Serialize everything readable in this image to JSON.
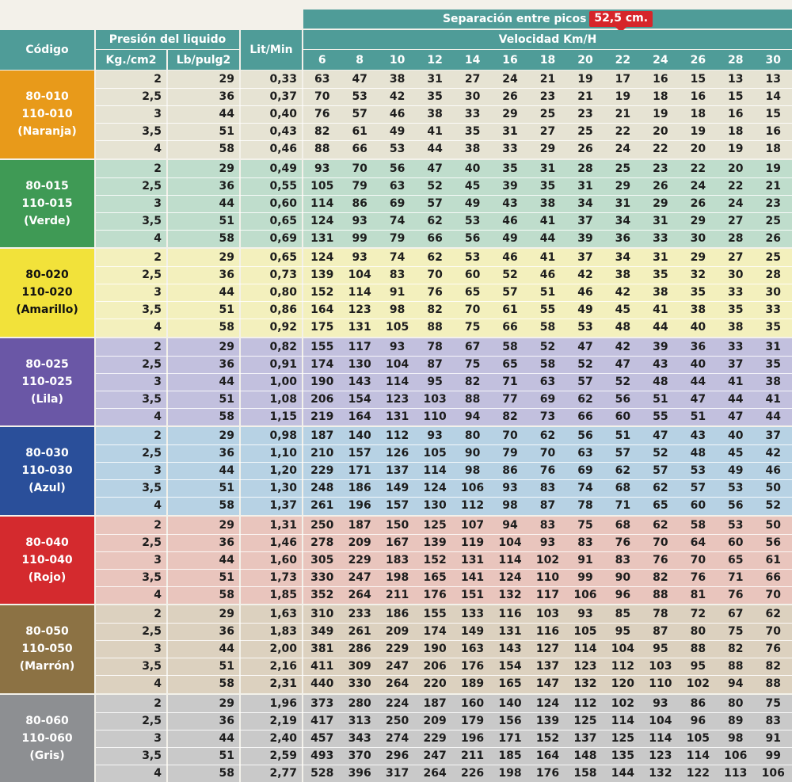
{
  "header": {
    "separation_label": "Separación entre picos",
    "separation_value": "52,5 cm.",
    "codigo": "Código",
    "presion": "Presión del liquido",
    "kg": "Kg./cm2",
    "lb": "Lb/pulg2",
    "lit": "Lit/Min",
    "velocidad": "Velocidad  Km/H",
    "speeds": [
      "6",
      "8",
      "10",
      "12",
      "14",
      "16",
      "18",
      "20",
      "22",
      "24",
      "26",
      "28",
      "30"
    ]
  },
  "groups": [
    {
      "code1": "80-010",
      "code2": "110-010",
      "color_name": "(Naranja)",
      "label_bg": "#e89a1a",
      "label_color": "#ffffff",
      "row_bg": "#e6e3d3",
      "rows": [
        {
          "kg": "2",
          "lb": "29",
          "lit": "0,33",
          "v": [
            "63",
            "47",
            "38",
            "31",
            "27",
            "24",
            "21",
            "19",
            "17",
            "16",
            "15",
            "13",
            "13"
          ]
        },
        {
          "kg": "2,5",
          "lb": "36",
          "lit": "0,37",
          "v": [
            "70",
            "53",
            "42",
            "35",
            "30",
            "26",
            "23",
            "21",
            "19",
            "18",
            "16",
            "15",
            "14"
          ]
        },
        {
          "kg": "3",
          "lb": "44",
          "lit": "0,40",
          "v": [
            "76",
            "57",
            "46",
            "38",
            "33",
            "29",
            "25",
            "23",
            "21",
            "19",
            "18",
            "16",
            "15"
          ]
        },
        {
          "kg": "3,5",
          "lb": "51",
          "lit": "0,43",
          "v": [
            "82",
            "61",
            "49",
            "41",
            "35",
            "31",
            "27",
            "25",
            "22",
            "20",
            "19",
            "18",
            "16"
          ]
        },
        {
          "kg": "4",
          "lb": "58",
          "lit": "0,46",
          "v": [
            "88",
            "66",
            "53",
            "44",
            "38",
            "33",
            "29",
            "26",
            "24",
            "22",
            "20",
            "19",
            "18"
          ]
        }
      ]
    },
    {
      "code1": "80-015",
      "code2": "110-015",
      "color_name": "(Verde)",
      "label_bg": "#3f9a55",
      "label_color": "#ffffff",
      "row_bg": "#bfddcc",
      "rows": [
        {
          "kg": "2",
          "lb": "29",
          "lit": "0,49",
          "v": [
            "93",
            "70",
            "56",
            "47",
            "40",
            "35",
            "31",
            "28",
            "25",
            "23",
            "22",
            "20",
            "19"
          ]
        },
        {
          "kg": "2,5",
          "lb": "36",
          "lit": "0,55",
          "v": [
            "105",
            "79",
            "63",
            "52",
            "45",
            "39",
            "35",
            "31",
            "29",
            "26",
            "24",
            "22",
            "21"
          ]
        },
        {
          "kg": "3",
          "lb": "44",
          "lit": "0,60",
          "v": [
            "114",
            "86",
            "69",
            "57",
            "49",
            "43",
            "38",
            "34",
            "31",
            "29",
            "26",
            "24",
            "23"
          ]
        },
        {
          "kg": "3,5",
          "lb": "51",
          "lit": "0,65",
          "v": [
            "124",
            "93",
            "74",
            "62",
            "53",
            "46",
            "41",
            "37",
            "34",
            "31",
            "29",
            "27",
            "25"
          ]
        },
        {
          "kg": "4",
          "lb": "58",
          "lit": "0,69",
          "v": [
            "131",
            "99",
            "79",
            "66",
            "56",
            "49",
            "44",
            "39",
            "36",
            "33",
            "30",
            "28",
            "26"
          ]
        }
      ]
    },
    {
      "code1": "80-020",
      "code2": "110-020",
      "color_name": "(Amarillo)",
      "label_bg": "#f2e23a",
      "label_color": "#111111",
      "row_bg": "#f3f0bd",
      "rows": [
        {
          "kg": "2",
          "lb": "29",
          "lit": "0,65",
          "v": [
            "124",
            "93",
            "74",
            "62",
            "53",
            "46",
            "41",
            "37",
            "34",
            "31",
            "29",
            "27",
            "25"
          ]
        },
        {
          "kg": "2,5",
          "lb": "36",
          "lit": "0,73",
          "v": [
            "139",
            "104",
            "83",
            "70",
            "60",
            "52",
            "46",
            "42",
            "38",
            "35",
            "32",
            "30",
            "28"
          ]
        },
        {
          "kg": "3",
          "lb": "44",
          "lit": "0,80",
          "v": [
            "152",
            "114",
            "91",
            "76",
            "65",
            "57",
            "51",
            "46",
            "42",
            "38",
            "35",
            "33",
            "30"
          ]
        },
        {
          "kg": "3,5",
          "lb": "51",
          "lit": "0,86",
          "v": [
            "164",
            "123",
            "98",
            "82",
            "70",
            "61",
            "55",
            "49",
            "45",
            "41",
            "38",
            "35",
            "33"
          ]
        },
        {
          "kg": "4",
          "lb": "58",
          "lit": "0,92",
          "v": [
            "175",
            "131",
            "105",
            "88",
            "75",
            "66",
            "58",
            "53",
            "48",
            "44",
            "40",
            "38",
            "35"
          ]
        }
      ]
    },
    {
      "code1": "80-025",
      "code2": "110-025",
      "color_name": "(Lila)",
      "label_bg": "#6a57a6",
      "label_color": "#ffffff",
      "row_bg": "#c2c0de",
      "rows": [
        {
          "kg": "2",
          "lb": "29",
          "lit": "0,82",
          "v": [
            "155",
            "117",
            "93",
            "78",
            "67",
            "58",
            "52",
            "47",
            "42",
            "39",
            "36",
            "33",
            "31"
          ]
        },
        {
          "kg": "2,5",
          "lb": "36",
          "lit": "0,91",
          "v": [
            "174",
            "130",
            "104",
            "87",
            "75",
            "65",
            "58",
            "52",
            "47",
            "43",
            "40",
            "37",
            "35"
          ]
        },
        {
          "kg": "3",
          "lb": "44",
          "lit": "1,00",
          "v": [
            "190",
            "143",
            "114",
            "95",
            "82",
            "71",
            "63",
            "57",
            "52",
            "48",
            "44",
            "41",
            "38"
          ]
        },
        {
          "kg": "3,5",
          "lb": "51",
          "lit": "1,08",
          "v": [
            "206",
            "154",
            "123",
            "103",
            "88",
            "77",
            "69",
            "62",
            "56",
            "51",
            "47",
            "44",
            "41"
          ]
        },
        {
          "kg": "4",
          "lb": "58",
          "lit": "1,15",
          "v": [
            "219",
            "164",
            "131",
            "110",
            "94",
            "82",
            "73",
            "66",
            "60",
            "55",
            "51",
            "47",
            "44"
          ]
        }
      ]
    },
    {
      "code1": "80-030",
      "code2": "110-030",
      "color_name": "(Azul)",
      "label_bg": "#2a4f9a",
      "label_color": "#ffffff",
      "row_bg": "#b7d2e4",
      "rows": [
        {
          "kg": "2",
          "lb": "29",
          "lit": "0,98",
          "v": [
            "187",
            "140",
            "112",
            "93",
            "80",
            "70",
            "62",
            "56",
            "51",
            "47",
            "43",
            "40",
            "37"
          ]
        },
        {
          "kg": "2,5",
          "lb": "36",
          "lit": "1,10",
          "v": [
            "210",
            "157",
            "126",
            "105",
            "90",
            "79",
            "70",
            "63",
            "57",
            "52",
            "48",
            "45",
            "42"
          ]
        },
        {
          "kg": "3",
          "lb": "44",
          "lit": "1,20",
          "v": [
            "229",
            "171",
            "137",
            "114",
            "98",
            "86",
            "76",
            "69",
            "62",
            "57",
            "53",
            "49",
            "46"
          ]
        },
        {
          "kg": "3,5",
          "lb": "51",
          "lit": "1,30",
          "v": [
            "248",
            "186",
            "149",
            "124",
            "106",
            "93",
            "83",
            "74",
            "68",
            "62",
            "57",
            "53",
            "50"
          ]
        },
        {
          "kg": "4",
          "lb": "58",
          "lit": "1,37",
          "v": [
            "261",
            "196",
            "157",
            "130",
            "112",
            "98",
            "87",
            "78",
            "71",
            "65",
            "60",
            "56",
            "52"
          ]
        }
      ]
    },
    {
      "code1": "80-040",
      "code2": "110-040",
      "color_name": "(Rojo)",
      "label_bg": "#d42a2e",
      "label_color": "#ffffff",
      "row_bg": "#e9c5bd",
      "rows": [
        {
          "kg": "2",
          "lb": "29",
          "lit": "1,31",
          "v": [
            "250",
            "187",
            "150",
            "125",
            "107",
            "94",
            "83",
            "75",
            "68",
            "62",
            "58",
            "53",
            "50"
          ]
        },
        {
          "kg": "2,5",
          "lb": "36",
          "lit": "1,46",
          "v": [
            "278",
            "209",
            "167",
            "139",
            "119",
            "104",
            "93",
            "83",
            "76",
            "70",
            "64",
            "60",
            "56"
          ]
        },
        {
          "kg": "3",
          "lb": "44",
          "lit": "1,60",
          "v": [
            "305",
            "229",
            "183",
            "152",
            "131",
            "114",
            "102",
            "91",
            "83",
            "76",
            "70",
            "65",
            "61"
          ]
        },
        {
          "kg": "3,5",
          "lb": "51",
          "lit": "1,73",
          "v": [
            "330",
            "247",
            "198",
            "165",
            "141",
            "124",
            "110",
            "99",
            "90",
            "82",
            "76",
            "71",
            "66"
          ]
        },
        {
          "kg": "4",
          "lb": "58",
          "lit": "1,85",
          "v": [
            "352",
            "264",
            "211",
            "176",
            "151",
            "132",
            "117",
            "106",
            "96",
            "88",
            "81",
            "76",
            "70"
          ]
        }
      ]
    },
    {
      "code1": "80-050",
      "code2": "110-050",
      "color_name": "(Marrón)",
      "label_bg": "#8c7244",
      "label_color": "#ffffff",
      "row_bg": "#dcd1bf",
      "rows": [
        {
          "kg": "2",
          "lb": "29",
          "lit": "1,63",
          "v": [
            "310",
            "233",
            "186",
            "155",
            "133",
            "116",
            "103",
            "93",
            "85",
            "78",
            "72",
            "67",
            "62"
          ]
        },
        {
          "kg": "2,5",
          "lb": "36",
          "lit": "1,83",
          "v": [
            "349",
            "261",
            "209",
            "174",
            "149",
            "131",
            "116",
            "105",
            "95",
            "87",
            "80",
            "75",
            "70"
          ]
        },
        {
          "kg": "3",
          "lb": "44",
          "lit": "2,00",
          "v": [
            "381",
            "286",
            "229",
            "190",
            "163",
            "143",
            "127",
            "114",
            "104",
            "95",
            "88",
            "82",
            "76"
          ]
        },
        {
          "kg": "3,5",
          "lb": "51",
          "lit": "2,16",
          "v": [
            "411",
            "309",
            "247",
            "206",
            "176",
            "154",
            "137",
            "123",
            "112",
            "103",
            "95",
            "88",
            "82"
          ]
        },
        {
          "kg": "4",
          "lb": "58",
          "lit": "2,31",
          "v": [
            "440",
            "330",
            "264",
            "220",
            "189",
            "165",
            "147",
            "132",
            "120",
            "110",
            "102",
            "94",
            "88"
          ]
        }
      ]
    },
    {
      "code1": "80-060",
      "code2": "110-060",
      "color_name": "(Gris)",
      "label_bg": "#8d8f92",
      "label_color": "#ffffff",
      "row_bg": "#c9c9c9",
      "rows": [
        {
          "kg": "2",
          "lb": "29",
          "lit": "1,96",
          "v": [
            "373",
            "280",
            "224",
            "187",
            "160",
            "140",
            "124",
            "112",
            "102",
            "93",
            "86",
            "80",
            "75"
          ]
        },
        {
          "kg": "2,5",
          "lb": "36",
          "lit": "2,19",
          "v": [
            "417",
            "313",
            "250",
            "209",
            "179",
            "156",
            "139",
            "125",
            "114",
            "104",
            "96",
            "89",
            "83"
          ]
        },
        {
          "kg": "3",
          "lb": "44",
          "lit": "2,40",
          "v": [
            "457",
            "343",
            "274",
            "229",
            "196",
            "171",
            "152",
            "137",
            "125",
            "114",
            "105",
            "98",
            "91"
          ]
        },
        {
          "kg": "3,5",
          "lb": "51",
          "lit": "2,59",
          "v": [
            "493",
            "370",
            "296",
            "247",
            "211",
            "185",
            "164",
            "148",
            "135",
            "123",
            "114",
            "106",
            "99"
          ]
        },
        {
          "kg": "4",
          "lb": "58",
          "lit": "2,77",
          "v": [
            "528",
            "396",
            "317",
            "264",
            "226",
            "198",
            "176",
            "158",
            "144",
            "132",
            "122",
            "113",
            "106"
          ]
        }
      ]
    }
  ]
}
